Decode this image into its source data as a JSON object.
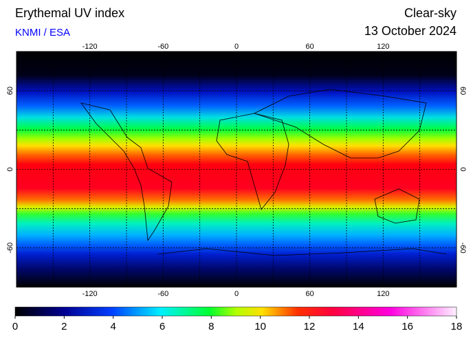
{
  "header": {
    "title": "Erythemal UV index",
    "source": "KNMI / ESA",
    "mode": "Clear-sky",
    "date": "13 October 2024"
  },
  "map": {
    "lon_range": [
      -180,
      180
    ],
    "lat_range": [
      -90,
      90
    ],
    "lon_ticks": [
      -120,
      -60,
      0,
      60,
      120
    ],
    "lat_ticks": [
      60,
      0,
      -60
    ],
    "lon_grid": [
      -150,
      -120,
      -90,
      -60,
      -30,
      0,
      30,
      60,
      90,
      120,
      150
    ],
    "lat_grid": [
      60,
      30,
      0,
      -30,
      -60
    ]
  },
  "colorbar": {
    "range": [
      0,
      18
    ],
    "ticks": [
      0,
      2,
      4,
      6,
      8,
      10,
      12,
      14,
      16,
      18
    ]
  }
}
